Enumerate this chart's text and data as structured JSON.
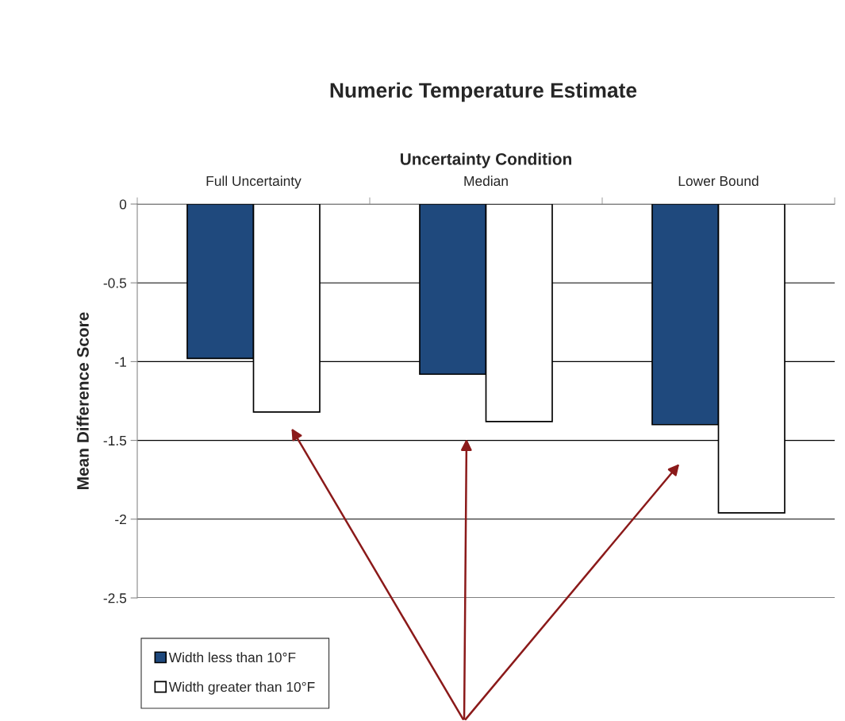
{
  "chart_data": {
    "type": "bar",
    "title": "Numeric Temperature Estimate",
    "xlabel": "Uncertainty Condition",
    "ylabel": "Mean Difference Score",
    "categories": [
      "Full Uncertainty",
      "Median",
      "Lower Bound"
    ],
    "series": [
      {
        "name": "Width less than 10°F",
        "color": "#1f497d",
        "values": [
          -0.98,
          -1.08,
          -1.4
        ]
      },
      {
        "name": "Width greater than 10°F",
        "color": "#ffffff",
        "values": [
          -1.32,
          -1.38,
          -1.96
        ]
      }
    ],
    "ylim": [
      -2.5,
      0
    ],
    "yticks": [
      -2.5,
      -2,
      -1.5,
      -1,
      -0.5,
      0
    ],
    "grid": "y",
    "legend": "bottom left"
  }
}
